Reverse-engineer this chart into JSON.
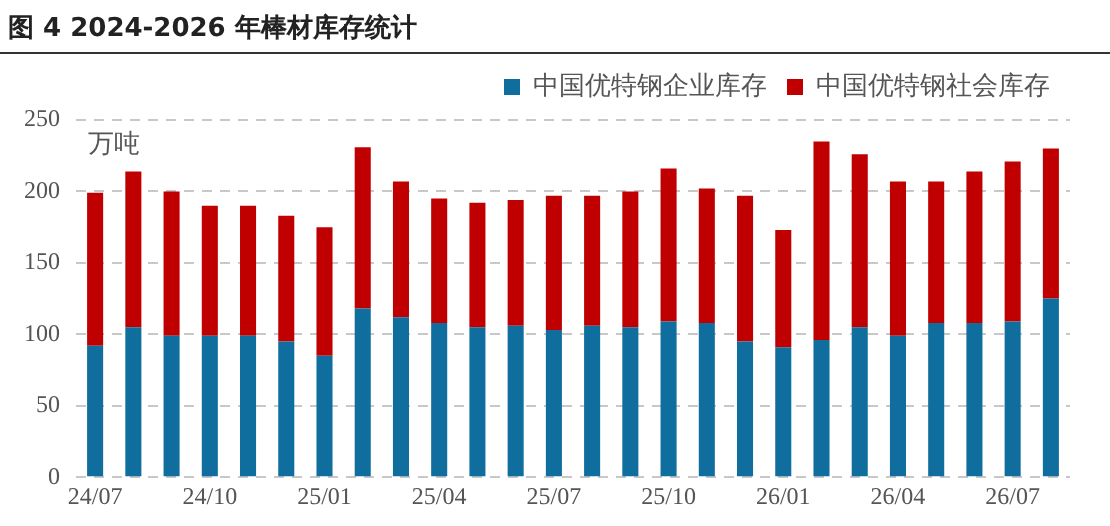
{
  "chart_data": {
    "type": "bar",
    "title": "图 4 2024-2026 年棒材库存统计",
    "ylabel": "万吨",
    "categories": [
      "24/07",
      null,
      null,
      "24/10",
      null,
      null,
      "25/01",
      null,
      null,
      "25/04",
      null,
      null,
      "25/07",
      null,
      null,
      "25/10",
      null,
      null,
      "26/01",
      null,
      null,
      "26/04",
      null,
      null,
      "26/07",
      null
    ],
    "stacked": true,
    "series": [
      {
        "name": "中国优特钢企业库存",
        "color": "#0f6e9e",
        "values": [
          92,
          105,
          99,
          99,
          99,
          95,
          85,
          118,
          112,
          108,
          105,
          106,
          103,
          106,
          105,
          109,
          108,
          95,
          91,
          96,
          105,
          99,
          108,
          108,
          109,
          125
        ]
      },
      {
        "name": "中国优特钢社会库存",
        "color": "#c00000",
        "values": [
          107,
          109,
          101,
          91,
          91,
          88,
          90,
          113,
          95,
          87,
          87,
          88,
          94,
          91,
          95,
          107,
          94,
          102,
          82,
          139,
          121,
          108,
          99,
          106,
          112,
          105
        ]
      }
    ],
    "ylim": [
      0,
      250
    ],
    "yticks": [
      0,
      50,
      100,
      150,
      200,
      250
    ],
    "grid": "y",
    "legend": "top right"
  }
}
